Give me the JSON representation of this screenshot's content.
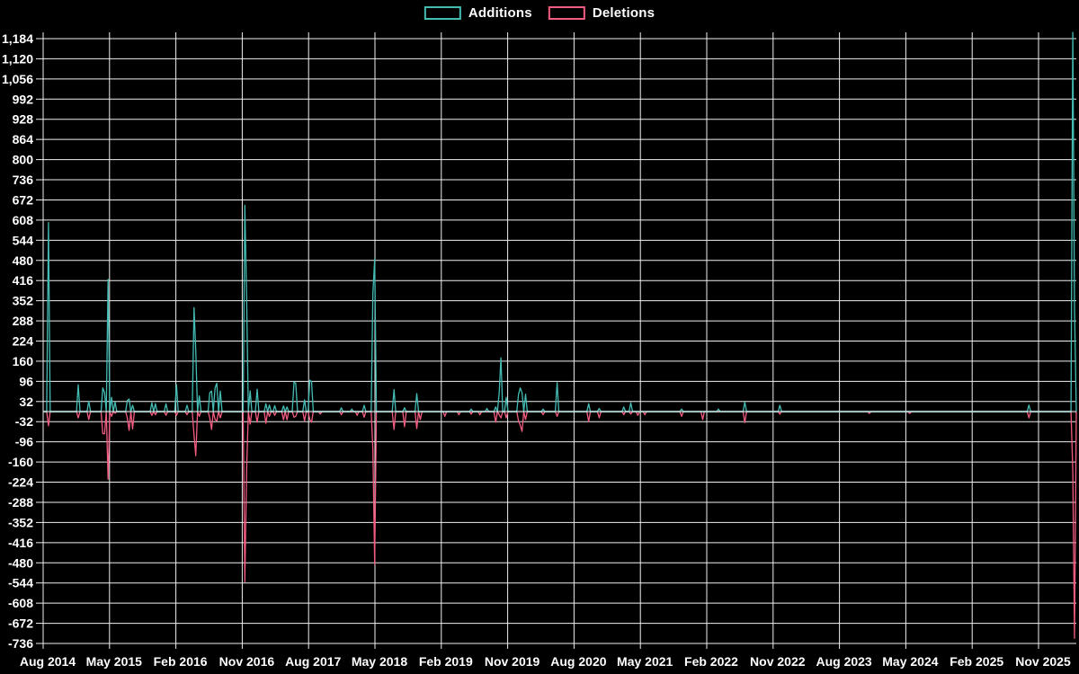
{
  "legend": {
    "additions_label": "Additions",
    "deletions_label": "Deletions"
  },
  "chart_data": {
    "type": "line",
    "title": "",
    "legend_position": "top",
    "background": "#000000",
    "grid": true,
    "series": [
      {
        "name": "Additions",
        "color": "#44BCB4"
      },
      {
        "name": "Deletions",
        "color": "#F25C80"
      }
    ],
    "x_axis": {
      "unit": "week",
      "tick_labels": [
        "Aug 2014",
        "May 2015",
        "Feb 2016",
        "Nov 2016",
        "Aug 2017",
        "May 2018",
        "Feb 2019",
        "Nov 2019",
        "Aug 2020",
        "May 2021",
        "Feb 2022",
        "Nov 2022",
        "Aug 2023",
        "May 2024",
        "Feb 2025",
        "Nov 2025"
      ]
    },
    "y_axis": {
      "min": -736,
      "max": 1184,
      "tick_step": 64,
      "tick_labels": [
        "1,184",
        "1,120",
        "1,056",
        "992",
        "928",
        "864",
        "800",
        "736",
        "672",
        "608",
        "544",
        "480",
        "416",
        "352",
        "288",
        "224",
        "160",
        "96",
        "32",
        "-32",
        "-96",
        "-160",
        "-224",
        "-288",
        "-352",
        "-416",
        "-480",
        "-544",
        "-608",
        "-672",
        "-736"
      ]
    },
    "weeks_total": 590,
    "baseline_value": 0,
    "spikes_format": "[week_index, additions, deletions]; every week not listed is 0 for both series",
    "spikes": [
      [
        3,
        600,
        -45
      ],
      [
        20,
        85,
        -20
      ],
      [
        26,
        33,
        -25
      ],
      [
        34,
        75,
        -70
      ],
      [
        35,
        60,
        -70
      ],
      [
        37,
        420,
        -215
      ],
      [
        39,
        45,
        -15
      ],
      [
        41,
        30,
        -5
      ],
      [
        48,
        35,
        -20
      ],
      [
        49,
        40,
        -60
      ],
      [
        51,
        20,
        -55
      ],
      [
        62,
        28,
        -12
      ],
      [
        64,
        25,
        -10
      ],
      [
        70,
        25,
        -12
      ],
      [
        76,
        85,
        -12
      ],
      [
        82,
        20,
        -10
      ],
      [
        86,
        330,
        -75
      ],
      [
        87,
        195,
        -140
      ],
      [
        89,
        50,
        -15
      ],
      [
        95,
        60,
        -20
      ],
      [
        96,
        65,
        -57
      ],
      [
        98,
        75,
        -25
      ],
      [
        99,
        90,
        -30
      ],
      [
        101,
        65,
        -20
      ],
      [
        115,
        655,
        -540
      ],
      [
        116,
        360,
        -185
      ],
      [
        118,
        66,
        -40
      ],
      [
        122,
        71,
        -34
      ],
      [
        127,
        25,
        -37
      ],
      [
        129,
        21,
        -15
      ],
      [
        132,
        19,
        -12
      ],
      [
        137,
        18,
        -26
      ],
      [
        139,
        15,
        -26
      ],
      [
        143,
        94,
        -18
      ],
      [
        144,
        90,
        -15
      ],
      [
        149,
        37,
        -29
      ],
      [
        152,
        100,
        -25
      ],
      [
        153,
        95,
        -34
      ],
      [
        158,
        0,
        -8
      ],
      [
        170,
        12,
        -10
      ],
      [
        176,
        8,
        0
      ],
      [
        179,
        0,
        -12
      ],
      [
        183,
        20,
        -18
      ],
      [
        188,
        375,
        -120
      ],
      [
        189,
        485,
        -485
      ],
      [
        200,
        70,
        -57
      ],
      [
        206,
        12,
        -48
      ],
      [
        213,
        57,
        -54
      ],
      [
        215,
        0,
        -25
      ],
      [
        229,
        0,
        -15
      ],
      [
        237,
        0,
        -10
      ],
      [
        244,
        8,
        -8
      ],
      [
        249,
        0,
        -10
      ],
      [
        253,
        10,
        0
      ],
      [
        258,
        15,
        -34
      ],
      [
        260,
        60,
        -10
      ],
      [
        261,
        171,
        -20
      ],
      [
        264,
        45,
        -20
      ],
      [
        271,
        55,
        -30
      ],
      [
        272,
        75,
        -43
      ],
      [
        273,
        60,
        -63
      ],
      [
        275,
        55,
        -25
      ],
      [
        285,
        8,
        -10
      ],
      [
        293,
        92,
        -15
      ],
      [
        311,
        25,
        -32
      ],
      [
        317,
        10,
        -20
      ],
      [
        331,
        15,
        -10
      ],
      [
        335,
        28,
        -8
      ],
      [
        339,
        0,
        -12
      ],
      [
        343,
        0,
        -10
      ],
      [
        364,
        8,
        -15
      ],
      [
        376,
        0,
        -25
      ],
      [
        385,
        8,
        0
      ],
      [
        400,
        30,
        -35
      ],
      [
        420,
        20,
        -8
      ],
      [
        471,
        0,
        -6
      ],
      [
        494,
        0,
        -6
      ],
      [
        562,
        21,
        -20
      ],
      [
        587,
        1210,
        -190
      ],
      [
        588,
        330,
        -720
      ]
    ]
  }
}
